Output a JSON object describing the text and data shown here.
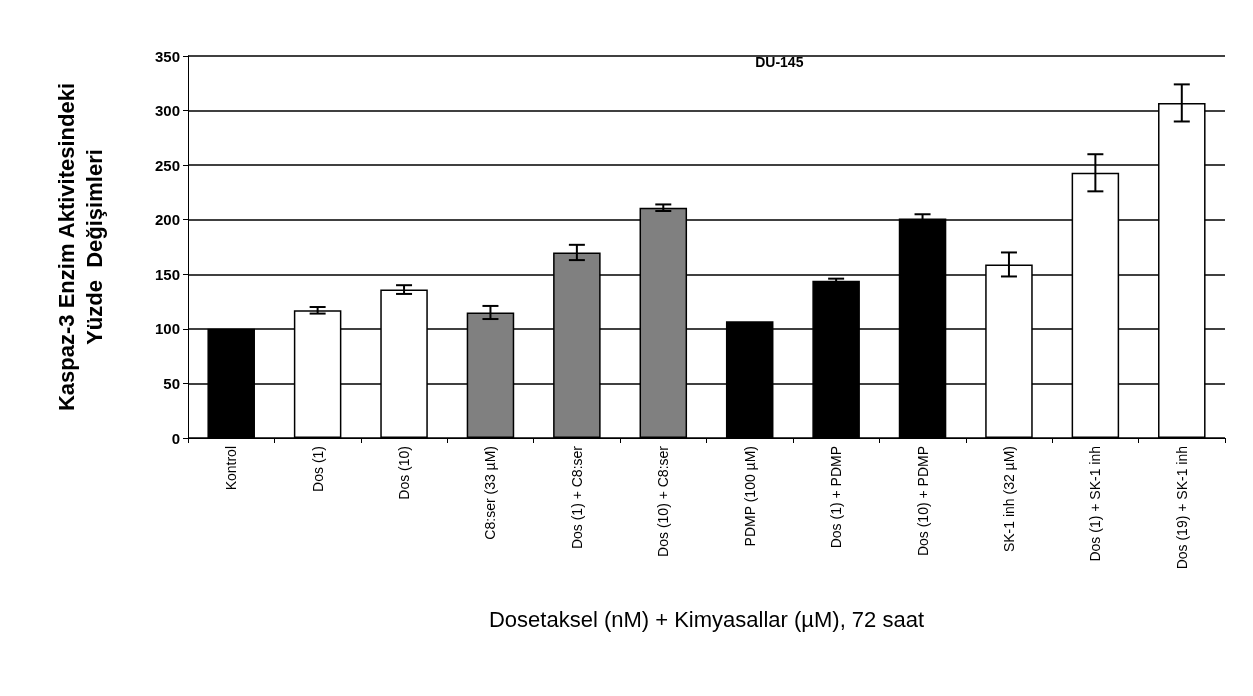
{
  "chart_data": {
    "type": "bar",
    "title": "DU-145",
    "xlabel": "Dosetaksel (nM) + Kimyasallar (µM), 72 saat",
    "ylabel": "Kaspaz-3 Enzim Aktivitesindeki\nYüzde  Değişimleri",
    "categories": [
      "Kontrol",
      "Dos (1)",
      "Dos (10)",
      "C8:ser (33 µM)",
      "Dos (1) + C8:ser",
      "Dos (10) + C8:ser",
      "PDMP (100 µM)",
      "Dos (1) + PDMP",
      "Dos (10) + PDMP",
      "SK-1 inh (32 µM)",
      "Dos (1) + SK-1 inh",
      "Dos (19) + SK-1 inh"
    ],
    "values": [
      100,
      117,
      136,
      115,
      170,
      211,
      107,
      144,
      201,
      159,
      243,
      307
    ],
    "errors": [
      null,
      3,
      4,
      6,
      7,
      3,
      null,
      2,
      4,
      11,
      17,
      17
    ],
    "colors": [
      "#000000",
      "#ffffff",
      "#ffffff",
      "#808080",
      "#808080",
      "#808080",
      "#000000",
      "#000000",
      "#000000",
      "#ffffff",
      "#ffffff",
      "#ffffff"
    ],
    "ylim": [
      0,
      350
    ],
    "yticks": [
      0,
      50,
      100,
      150,
      200,
      250,
      300,
      350
    ],
    "grid": "y"
  }
}
